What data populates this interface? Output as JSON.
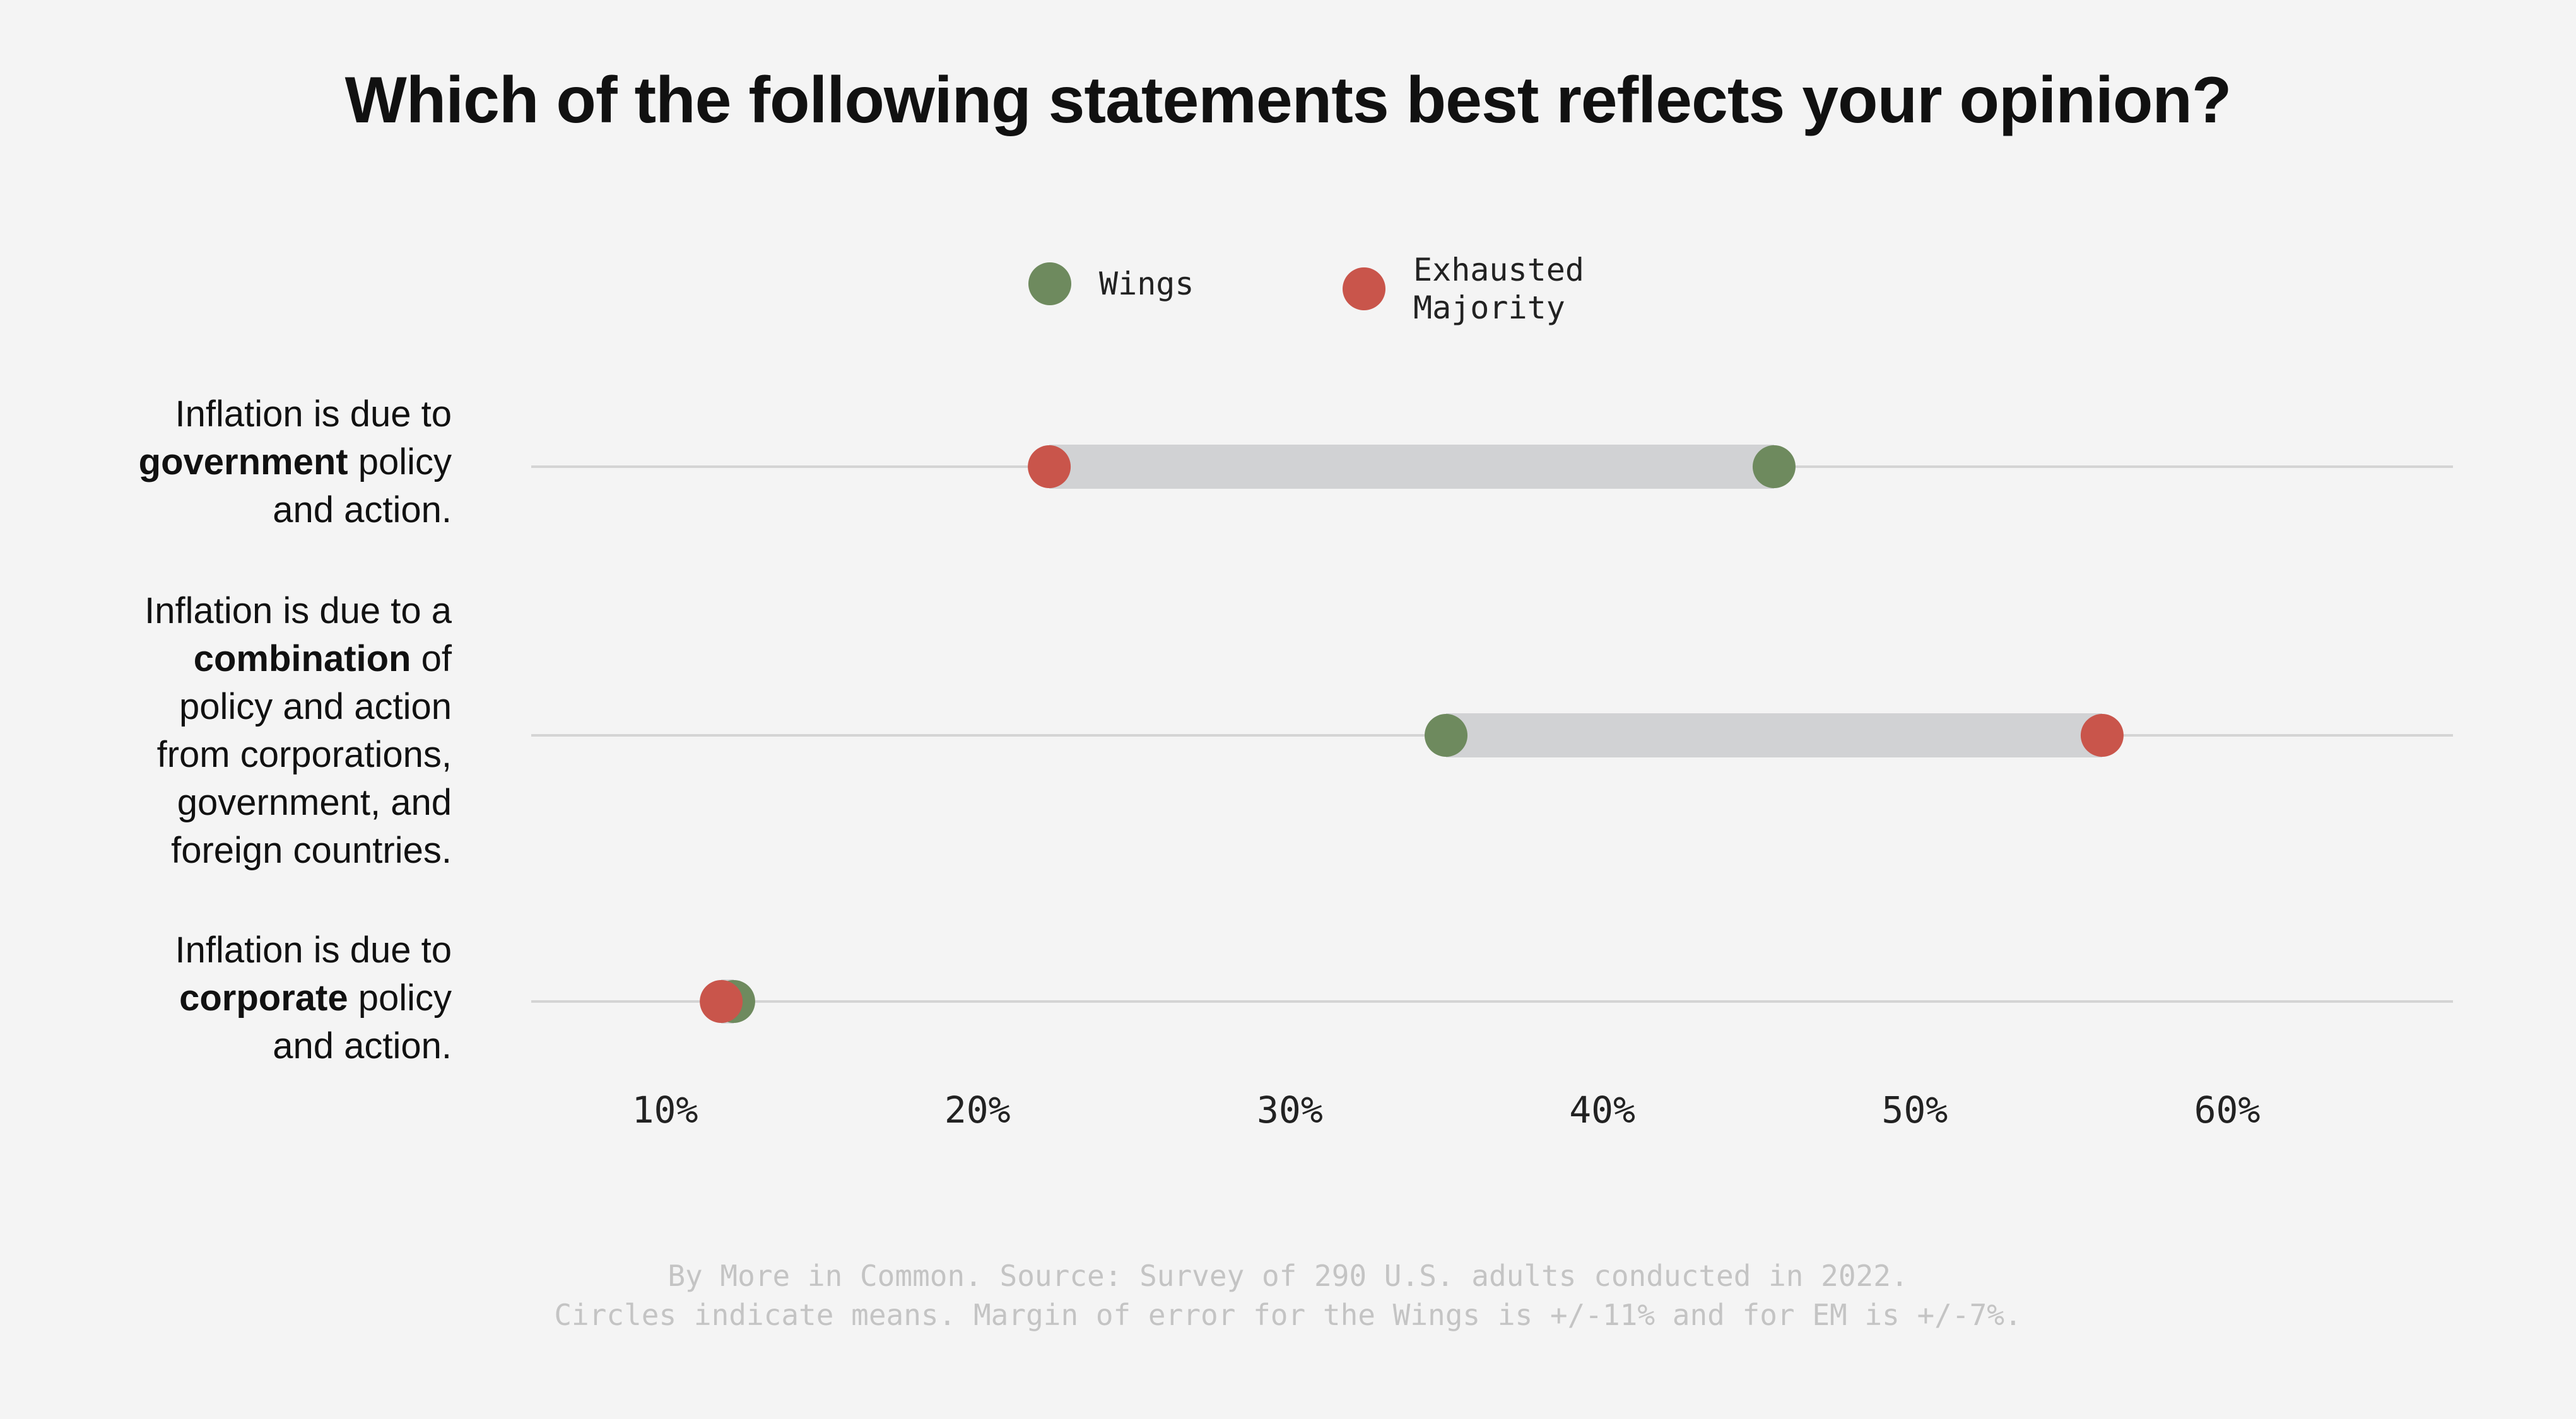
{
  "chart_data": {
    "type": "dumbbell",
    "title": "Which of the following statements best reflects your opinion?",
    "legend": [
      {
        "name": "Wings",
        "color": "#6e8a5e"
      },
      {
        "name": "Exhausted Majority",
        "name_line1": "Exhausted",
        "name_line2": "Majority",
        "color": "#c9554b"
      }
    ],
    "legend_position": "top",
    "categories": [
      {
        "prefix": "Inflation is due to ",
        "bold": "government",
        "suffix": " policy and action."
      },
      {
        "prefix": "Inflation is due to a ",
        "bold": "combination",
        "suffix": " of policy and action from corporations, government, and foreign countries."
      },
      {
        "prefix": "Inflation is due to ",
        "bold": "corporate",
        "suffix": " policy and action."
      }
    ],
    "series": [
      {
        "name": "Wings",
        "values": [
          45.5,
          35.0,
          12.2
        ]
      },
      {
        "name": "Exhausted Majority",
        "values": [
          22.3,
          56.0,
          11.8
        ]
      }
    ],
    "xticks": [
      "10%",
      "20%",
      "30%",
      "40%",
      "50%",
      "60%"
    ],
    "xtick_values": [
      10,
      20,
      30,
      40,
      50,
      60
    ],
    "grid": true
  },
  "footer": {
    "line1": "By More in Common. Source: Survey of 290 U.S. adults conducted in 2022.",
    "line2": "Circles indicate means. Margin of error for the Wings is +/-11% and for EM is +/-7%."
  },
  "colors": {
    "range_bar": "#d1d2d4",
    "grid_line": "#d4d4d4",
    "background": "#f4f4f4"
  }
}
